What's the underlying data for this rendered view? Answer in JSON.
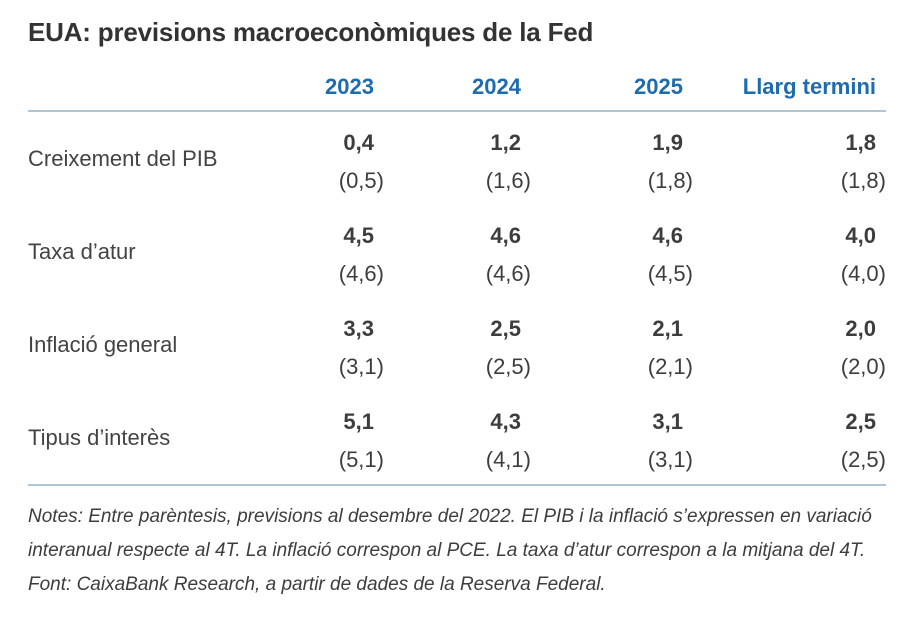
{
  "title": "EUA: previsions macroeconòmiques de la Fed",
  "table": {
    "columns": [
      "2023",
      "2024",
      "2025",
      "Llarg termini"
    ],
    "rows": [
      {
        "label": "Creixement del PIB",
        "values": [
          "0,4",
          "1,2",
          "1,9",
          "1,8"
        ],
        "prev": [
          "(0,5)",
          "(1,6)",
          "(1,8)",
          "(1,8)"
        ]
      },
      {
        "label": "Taxa d’atur",
        "values": [
          "4,5",
          "4,6",
          "4,6",
          "4,0"
        ],
        "prev": [
          "(4,6)",
          "(4,6)",
          "(4,5)",
          "(4,0)"
        ]
      },
      {
        "label": "Inflació general",
        "values": [
          "3,3",
          "2,5",
          "2,1",
          "2,0"
        ],
        "prev": [
          "(3,1)",
          "(2,5)",
          "(2,1)",
          "(2,0)"
        ]
      },
      {
        "label": "Tipus d’interès",
        "values": [
          "5,1",
          "4,3",
          "3,1",
          "2,5"
        ],
        "prev": [
          "(5,1)",
          "(4,1)",
          "(3,1)",
          "(2,5)"
        ]
      }
    ]
  },
  "notes": "Notes: Entre parèntesis, previsions al desembre del 2022. El PIB i la inflació s’expressen en variació interanual respecte al 4T. La inflació correspon al PCE. La taxa d’atur correspon a la mitjana del 4T.",
  "source": "Font: CaixaBank Research, a partir de dades de la Reserva Federal.",
  "colors": {
    "header_blue": "#1e6bae",
    "rule_blue": "#a9c7d5",
    "text_dark": "#3d3d3d"
  },
  "chart_data": {
    "type": "table",
    "title": "EUA: previsions macroeconòmiques de la Fed",
    "columns": [
      "2023",
      "2024",
      "2025",
      "Llarg termini"
    ],
    "rows": [
      {
        "label": "Creixement del PIB",
        "current": [
          0.4,
          1.2,
          1.9,
          1.8
        ],
        "previous_in_parentheses": [
          0.5,
          1.6,
          1.8,
          1.8
        ]
      },
      {
        "label": "Taxa d’atur",
        "current": [
          4.5,
          4.6,
          4.6,
          4.0
        ],
        "previous_in_parentheses": [
          4.6,
          4.6,
          4.5,
          4.0
        ]
      },
      {
        "label": "Inflació general",
        "current": [
          3.3,
          2.5,
          2.1,
          2.0
        ],
        "previous_in_parentheses": [
          3.1,
          2.5,
          2.1,
          2.0
        ]
      },
      {
        "label": "Tipus d’interès",
        "current": [
          5.1,
          4.3,
          3.1,
          2.5
        ],
        "previous_in_parentheses": [
          5.1,
          4.1,
          3.1,
          2.5
        ]
      }
    ],
    "notes": "Notes: Entre parèntesis, previsions al desembre del 2022. El PIB i la inflació s’expressen en variació interanual respecte al 4T. La inflació correspon al PCE. La taxa d’atur correspon a la mitjana del 4T.",
    "source": "Font: CaixaBank Research, a partir de dades de la Reserva Federal."
  }
}
